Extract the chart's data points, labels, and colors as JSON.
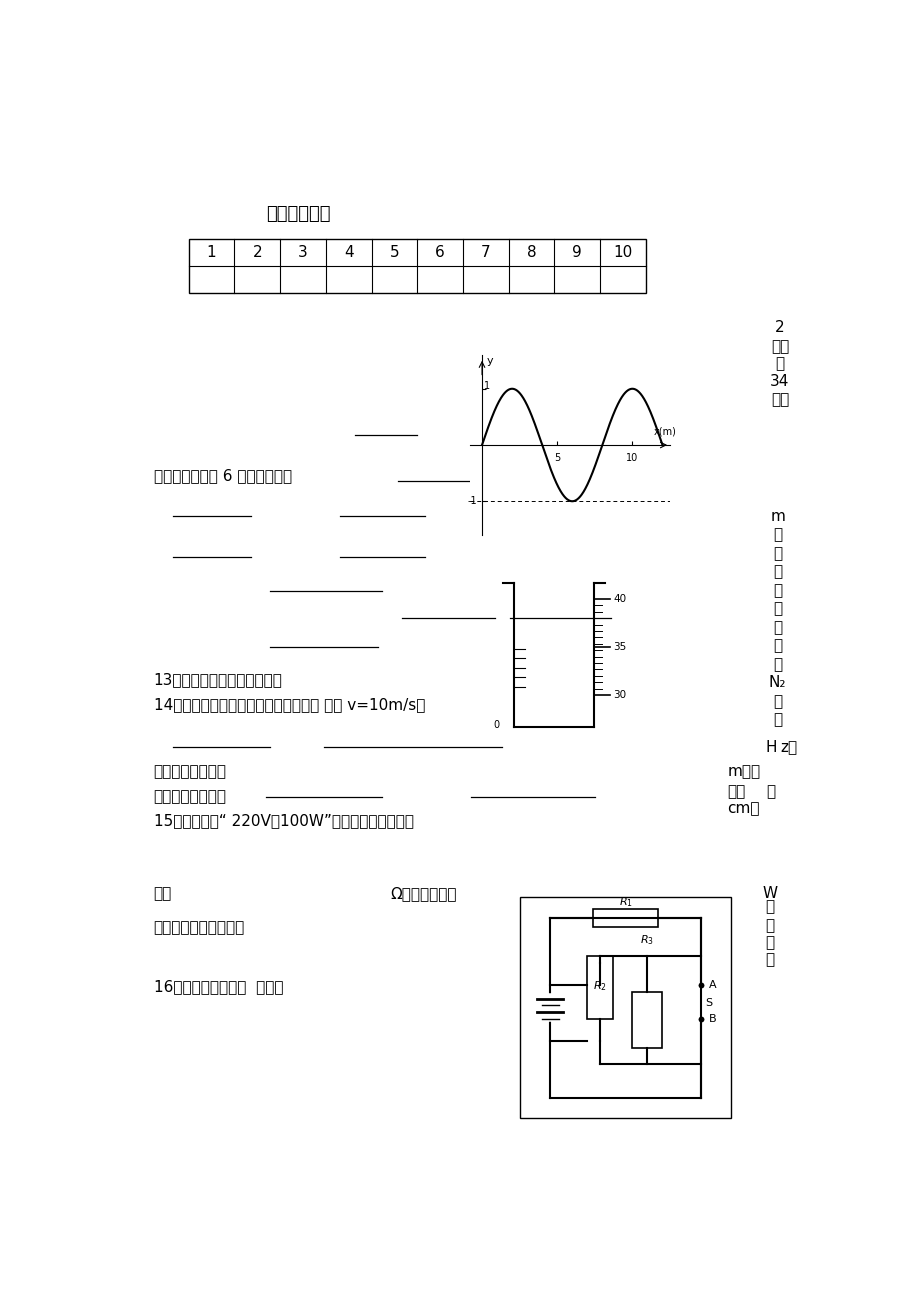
{
  "title": "选择题答题卡",
  "table_numbers": [
    "1",
    "2",
    "3",
    "4",
    "5",
    "6",
    "7",
    "8",
    "9",
    "10"
  ],
  "section2_title": "二．填空题（共 6 个小题，每空",
  "q13": "13．一般分子直径的数量级为",
  "q14": "14．右图表示某一时刻一列波的图象。 波速 v=10m/s，",
  "q14b": "这列波的波长等于",
  "q14c": "质点振动的振幅是",
  "q15": "15．一个标有“ 220V，100W”的灯泡，该电灯的电",
  "q15b": "阻是",
  "q15c": "Ω，额定功率为",
  "q15d": "的电源上，实际功率为",
  "q16": "16．改变物体内能的  方法有",
  "right1": [
    "2",
    "分，",
    "共",
    "34",
    "分）"
  ],
  "right2": [
    "m",
    "；",
    "阿",
    "伏",
    "伽",
    "德",
    "罗",
    "常",
    "数",
    "N₂",
    "为",
    "。"
  ],
  "right3a": "H",
  "right3b": "z，",
  "right4a": "m，频",
  "right4b": "率为",
  "right4c": "，",
  "right5": "cm。",
  "right6a": "W",
  "right6b": "。",
  "right6c": "两",
  "right6d": "种",
  "right6e": "方",
  "background_color": "#ffffff",
  "text_color": "#000000"
}
